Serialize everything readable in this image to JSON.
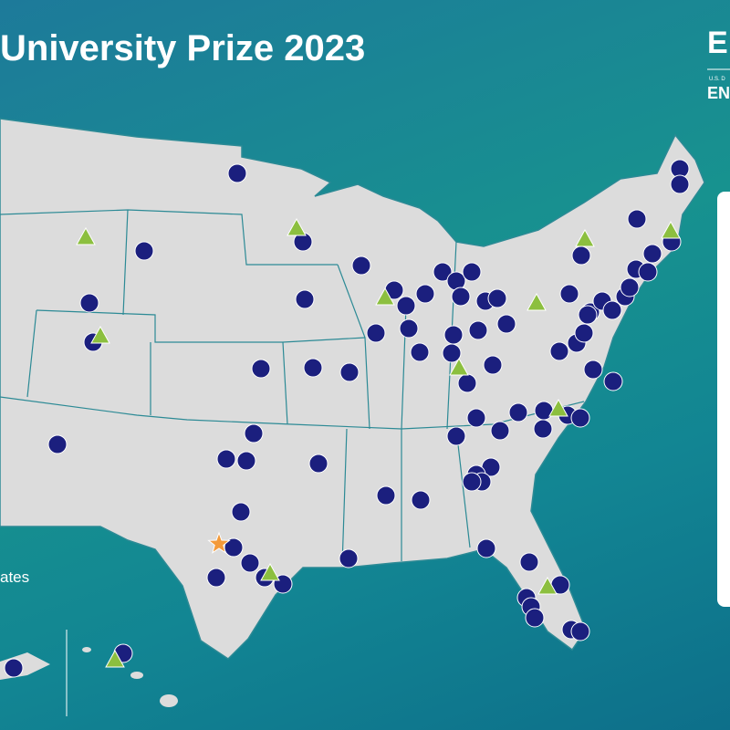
{
  "header": {
    "title": "University Prize 2023",
    "logo_letter": "E",
    "logo_subtext": "U.S. D",
    "logo_word": "EN"
  },
  "legend": {
    "partial_label": "ates"
  }
}
